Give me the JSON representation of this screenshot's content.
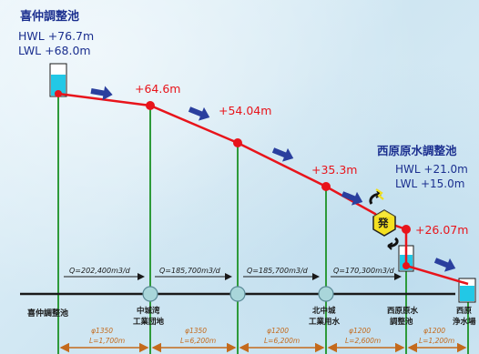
{
  "origin": {
    "name": "喜仲調整池",
    "hwl": "HWL  +76.7m",
    "lwl": "LWL  +68.0m",
    "bottom_label": "喜仲調整池"
  },
  "elevations": [
    {
      "label": "+64.6m"
    },
    {
      "label": "+54.04m"
    },
    {
      "label": "+35.3m"
    },
    {
      "label": "+26.07m"
    }
  ],
  "destination": {
    "name": "西原原水調整池",
    "hwl": "HWL  +21.0m",
    "lwl": "LWL  +15.0m",
    "bottom_label_1": "西原原水",
    "bottom_label_2": "調整池"
  },
  "power_plant": {
    "label": "発"
  },
  "nodes": [
    {
      "line1": "中城湾",
      "line2": "工業団地"
    },
    {
      "line1": "北中城",
      "line2": "工業用水"
    },
    {
      "line1": "西原",
      "line2": "浄水場"
    }
  ],
  "flows": [
    {
      "label": "Q=202,400m3/d"
    },
    {
      "label": "Q=185,700m3/d"
    },
    {
      "label": "Q=185,700m3/d"
    },
    {
      "label": "Q=170,300m3/d"
    }
  ],
  "pipes": [
    {
      "diameter": "φ1350",
      "length": "L=1,700m"
    },
    {
      "diameter": "φ1350",
      "length": "L=6,200m"
    },
    {
      "diameter": "φ1200",
      "length": "L=6,200m"
    },
    {
      "diameter": "φ1200",
      "length": "L=2,600m"
    },
    {
      "diameter": "φ1200",
      "length": "L=1,200m"
    }
  ],
  "colors": {
    "hydraulic_line": "#e8141b",
    "vertical_line": "#2e9a3a",
    "ground_line": "#1a1a1a",
    "arrow": "#2a3f9e",
    "dimension": "#c46a1c",
    "title_text": "#1b2f8f",
    "water": "#22c8e6"
  }
}
